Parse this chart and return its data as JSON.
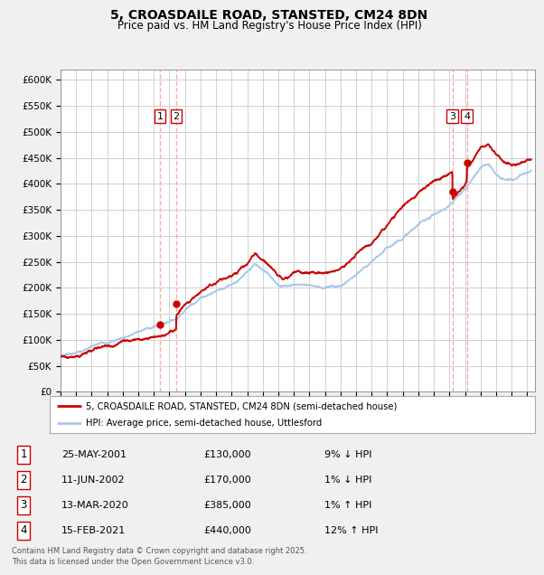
{
  "title": "5, CROASDAILE ROAD, STANSTED, CM24 8DN",
  "subtitle": "Price paid vs. HM Land Registry's House Price Index (HPI)",
  "footer": "Contains HM Land Registry data © Crown copyright and database right 2025.\nThis data is licensed under the Open Government Licence v3.0.",
  "legend_line1": "5, CROASDAILE ROAD, STANSTED, CM24 8DN (semi-detached house)",
  "legend_line2": "HPI: Average price, semi-detached house, Uttlesford",
  "transactions": [
    {
      "num": 1,
      "date": "25-MAY-2001",
      "price": 130000,
      "pct": "9%",
      "dir": "↓",
      "x_year": 2001.39
    },
    {
      "num": 2,
      "date": "11-JUN-2002",
      "price": 170000,
      "pct": "1%",
      "dir": "↓",
      "x_year": 2002.44
    },
    {
      "num": 3,
      "date": "13-MAR-2020",
      "price": 385000,
      "pct": "1%",
      "dir": "↑",
      "x_year": 2020.2
    },
    {
      "num": 4,
      "date": "15-FEB-2021",
      "price": 440000,
      "pct": "12%",
      "dir": "↑",
      "x_year": 2021.12
    }
  ],
  "hpi_color": "#a8c8e8",
  "price_color": "#cc0000",
  "grid_color": "#d0d0d0",
  "background_color": "#f0f0f0",
  "plot_bg_color": "#ffffff",
  "vline_color": "#ffaaaa",
  "ylim": [
    0,
    620000
  ],
  "xlim": [
    1995.0,
    2025.5
  ],
  "yticks": [
    0,
    50000,
    100000,
    150000,
    200000,
    250000,
    300000,
    350000,
    400000,
    450000,
    500000,
    550000,
    600000
  ],
  "xticks": [
    1995,
    1996,
    1997,
    1998,
    1999,
    2000,
    2001,
    2002,
    2003,
    2004,
    2005,
    2006,
    2007,
    2008,
    2009,
    2010,
    2011,
    2012,
    2013,
    2014,
    2015,
    2016,
    2017,
    2018,
    2019,
    2020,
    2021,
    2022,
    2023,
    2024,
    2025
  ]
}
